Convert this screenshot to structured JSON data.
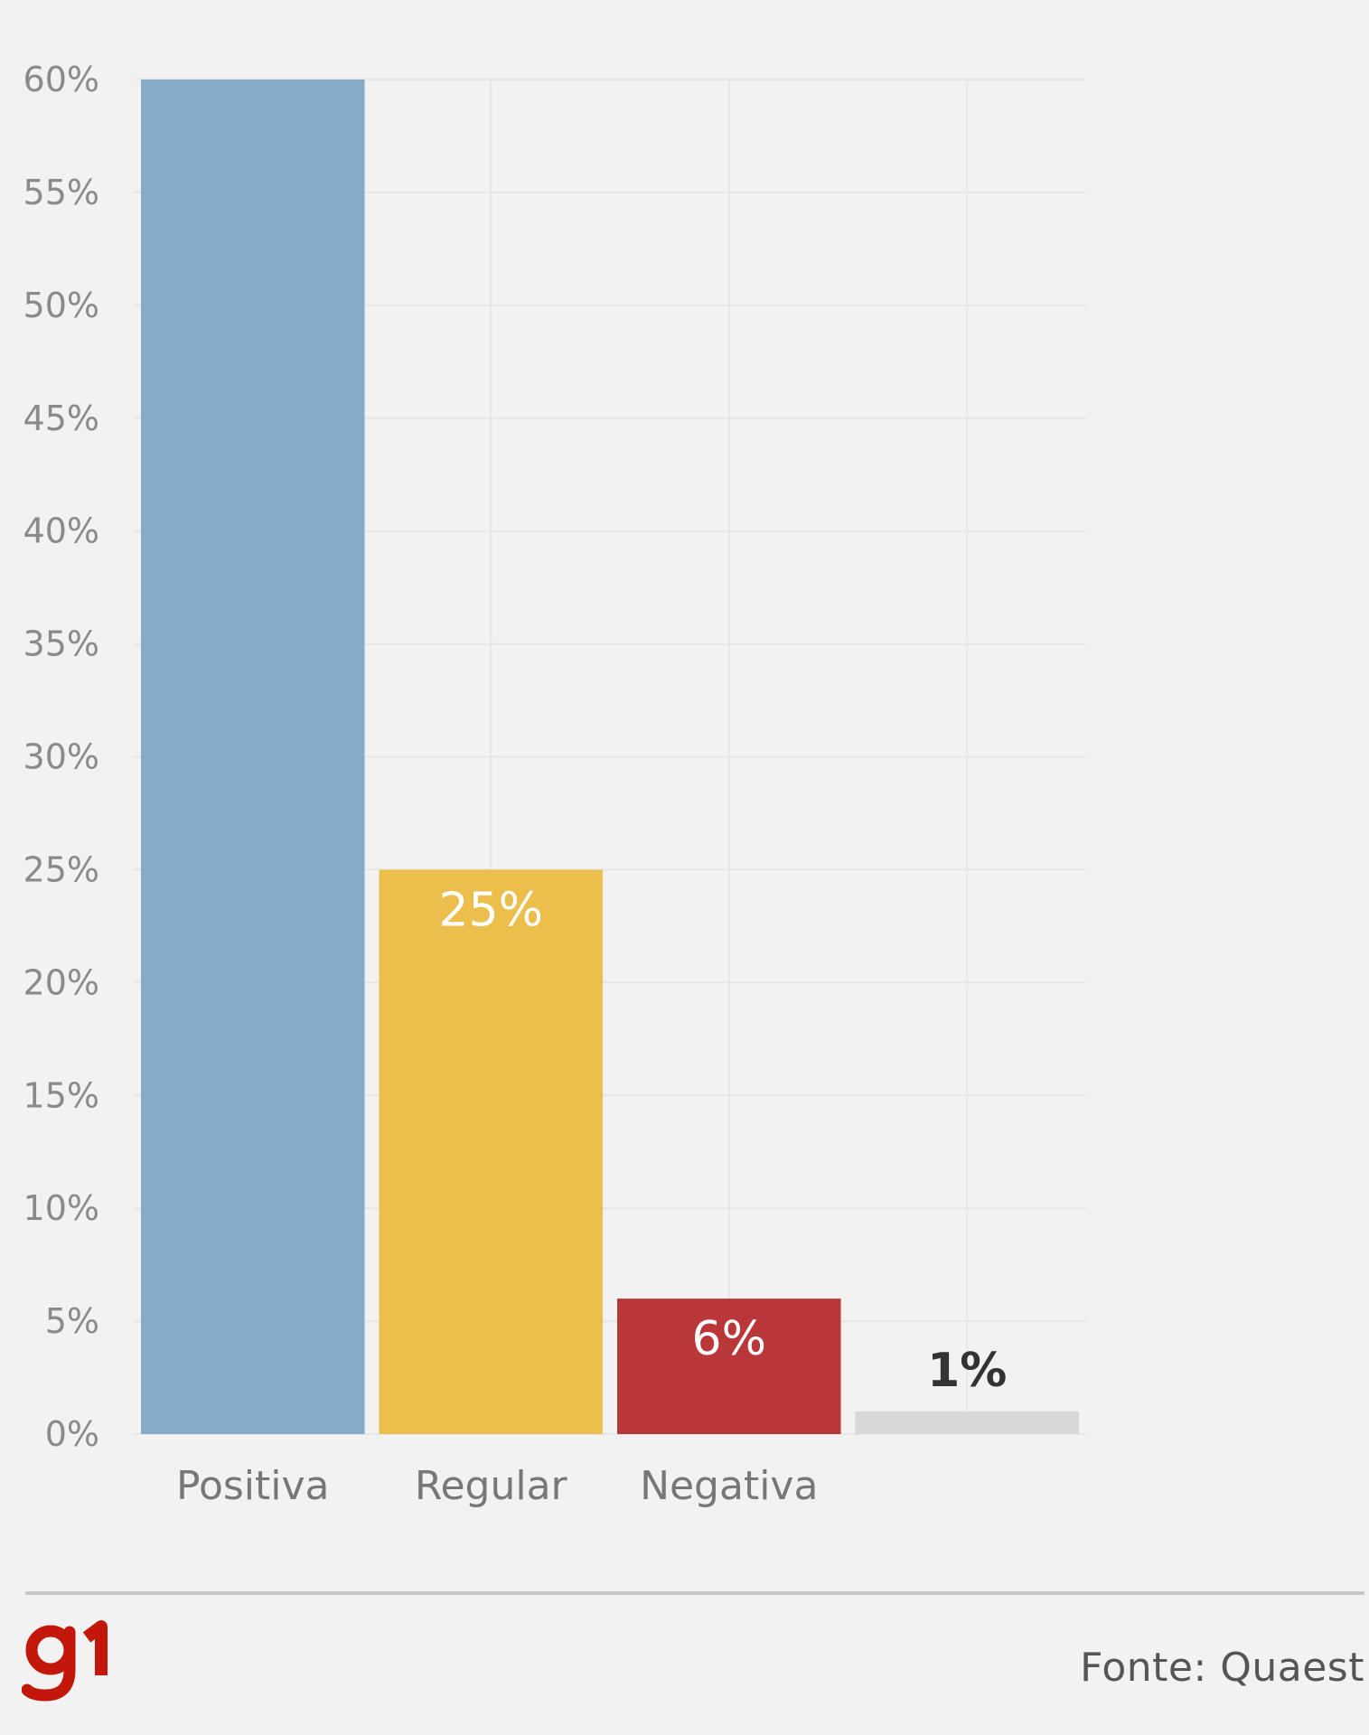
{
  "chart_data": {
    "type": "bar",
    "categories": [
      "Positiva",
      "Regular",
      "Negativa",
      ""
    ],
    "values": [
      60,
      25,
      6,
      1
    ],
    "data_labels": [
      "",
      "25%",
      "6%",
      "1%"
    ],
    "bar_colors": [
      "#85abc9",
      "#ecbf4d",
      "#b93639",
      "#d8d8d8"
    ],
    "label_colors": [
      "#ffffff",
      "#ffffff",
      "#ffffff",
      "#333333"
    ],
    "y_ticks": [
      0,
      5,
      10,
      15,
      20,
      25,
      30,
      35,
      40,
      45,
      50,
      55,
      60
    ],
    "y_tick_labels": [
      "0%",
      "5%",
      "10%",
      "15%",
      "20%",
      "25%",
      "30%",
      "35%",
      "40%",
      "45%",
      "50%",
      "55%",
      "60%"
    ],
    "ylim": [
      0,
      60
    ],
    "grid": true
  },
  "brand": {
    "logo_text": "g1",
    "logo_color": "#c4170c"
  },
  "footer": {
    "source": "Fonte: Quaest"
  }
}
